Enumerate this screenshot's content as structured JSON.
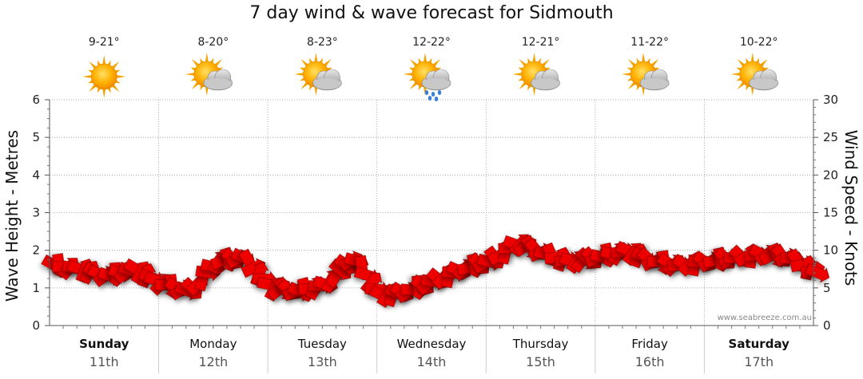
{
  "title": "7 day wind & wave forecast for Sidmouth",
  "watermark": "www.seabreeze.com.au",
  "chart_data": {
    "type": "line",
    "title": "7 day wind & wave forecast for Sidmouth",
    "ylabel": "Wave Height - Metres",
    "y2label": "Wind Speed - Knots",
    "ylim": [
      0,
      6
    ],
    "y2lim": [
      0,
      30
    ],
    "yticks": [
      "0",
      "1",
      "2",
      "3",
      "4",
      "5",
      "6"
    ],
    "y2ticks": [
      "0",
      "5",
      "10",
      "15",
      "20",
      "25",
      "30"
    ],
    "grid": true,
    "days": [
      {
        "day": "Sunday",
        "date": "11th",
        "bold": true,
        "temp": "9-21°",
        "icon": "sunny-icon"
      },
      {
        "day": "Monday",
        "date": "12th",
        "bold": false,
        "temp": "8-20°",
        "icon": "partly-cloudy-icon"
      },
      {
        "day": "Tuesday",
        "date": "13th",
        "bold": false,
        "temp": "8-23°",
        "icon": "partly-cloudy-icon"
      },
      {
        "day": "Wednesday",
        "date": "14th",
        "bold": false,
        "temp": "12-22°",
        "icon": "sun-cloud-rain-icon"
      },
      {
        "day": "Thursday",
        "date": "15th",
        "bold": false,
        "temp": "12-21°",
        "icon": "partly-cloudy-icon"
      },
      {
        "day": "Friday",
        "date": "16th",
        "bold": false,
        "temp": "11-22°",
        "icon": "partly-cloudy-icon"
      },
      {
        "day": "Saturday",
        "date": "17th",
        "bold": true,
        "temp": "10-22°",
        "icon": "partly-cloudy-icon"
      }
    ],
    "series": [
      {
        "color": "#ee0000",
        "x": [
          0,
          0.25,
          0.5,
          0.75,
          1.0,
          1.25,
          1.5,
          1.75,
          2.0,
          2.25,
          2.5,
          2.75,
          3.0,
          3.25,
          3.5,
          3.75,
          4.0,
          4.25,
          4.5,
          4.75,
          5.0,
          5.25,
          5.5,
          5.75,
          6.0,
          6.25,
          6.5,
          6.75,
          7.0
        ],
        "values": [
          8,
          7.5,
          6.5,
          7.5,
          5.5,
          4.5,
          8.5,
          9,
          5,
          4.5,
          5.5,
          9,
          4,
          4.5,
          6,
          7.5,
          8.5,
          11,
          9.5,
          8.5,
          9,
          10,
          8.5,
          8,
          8.5,
          9,
          9.5,
          9,
          7
        ]
      }
    ]
  }
}
